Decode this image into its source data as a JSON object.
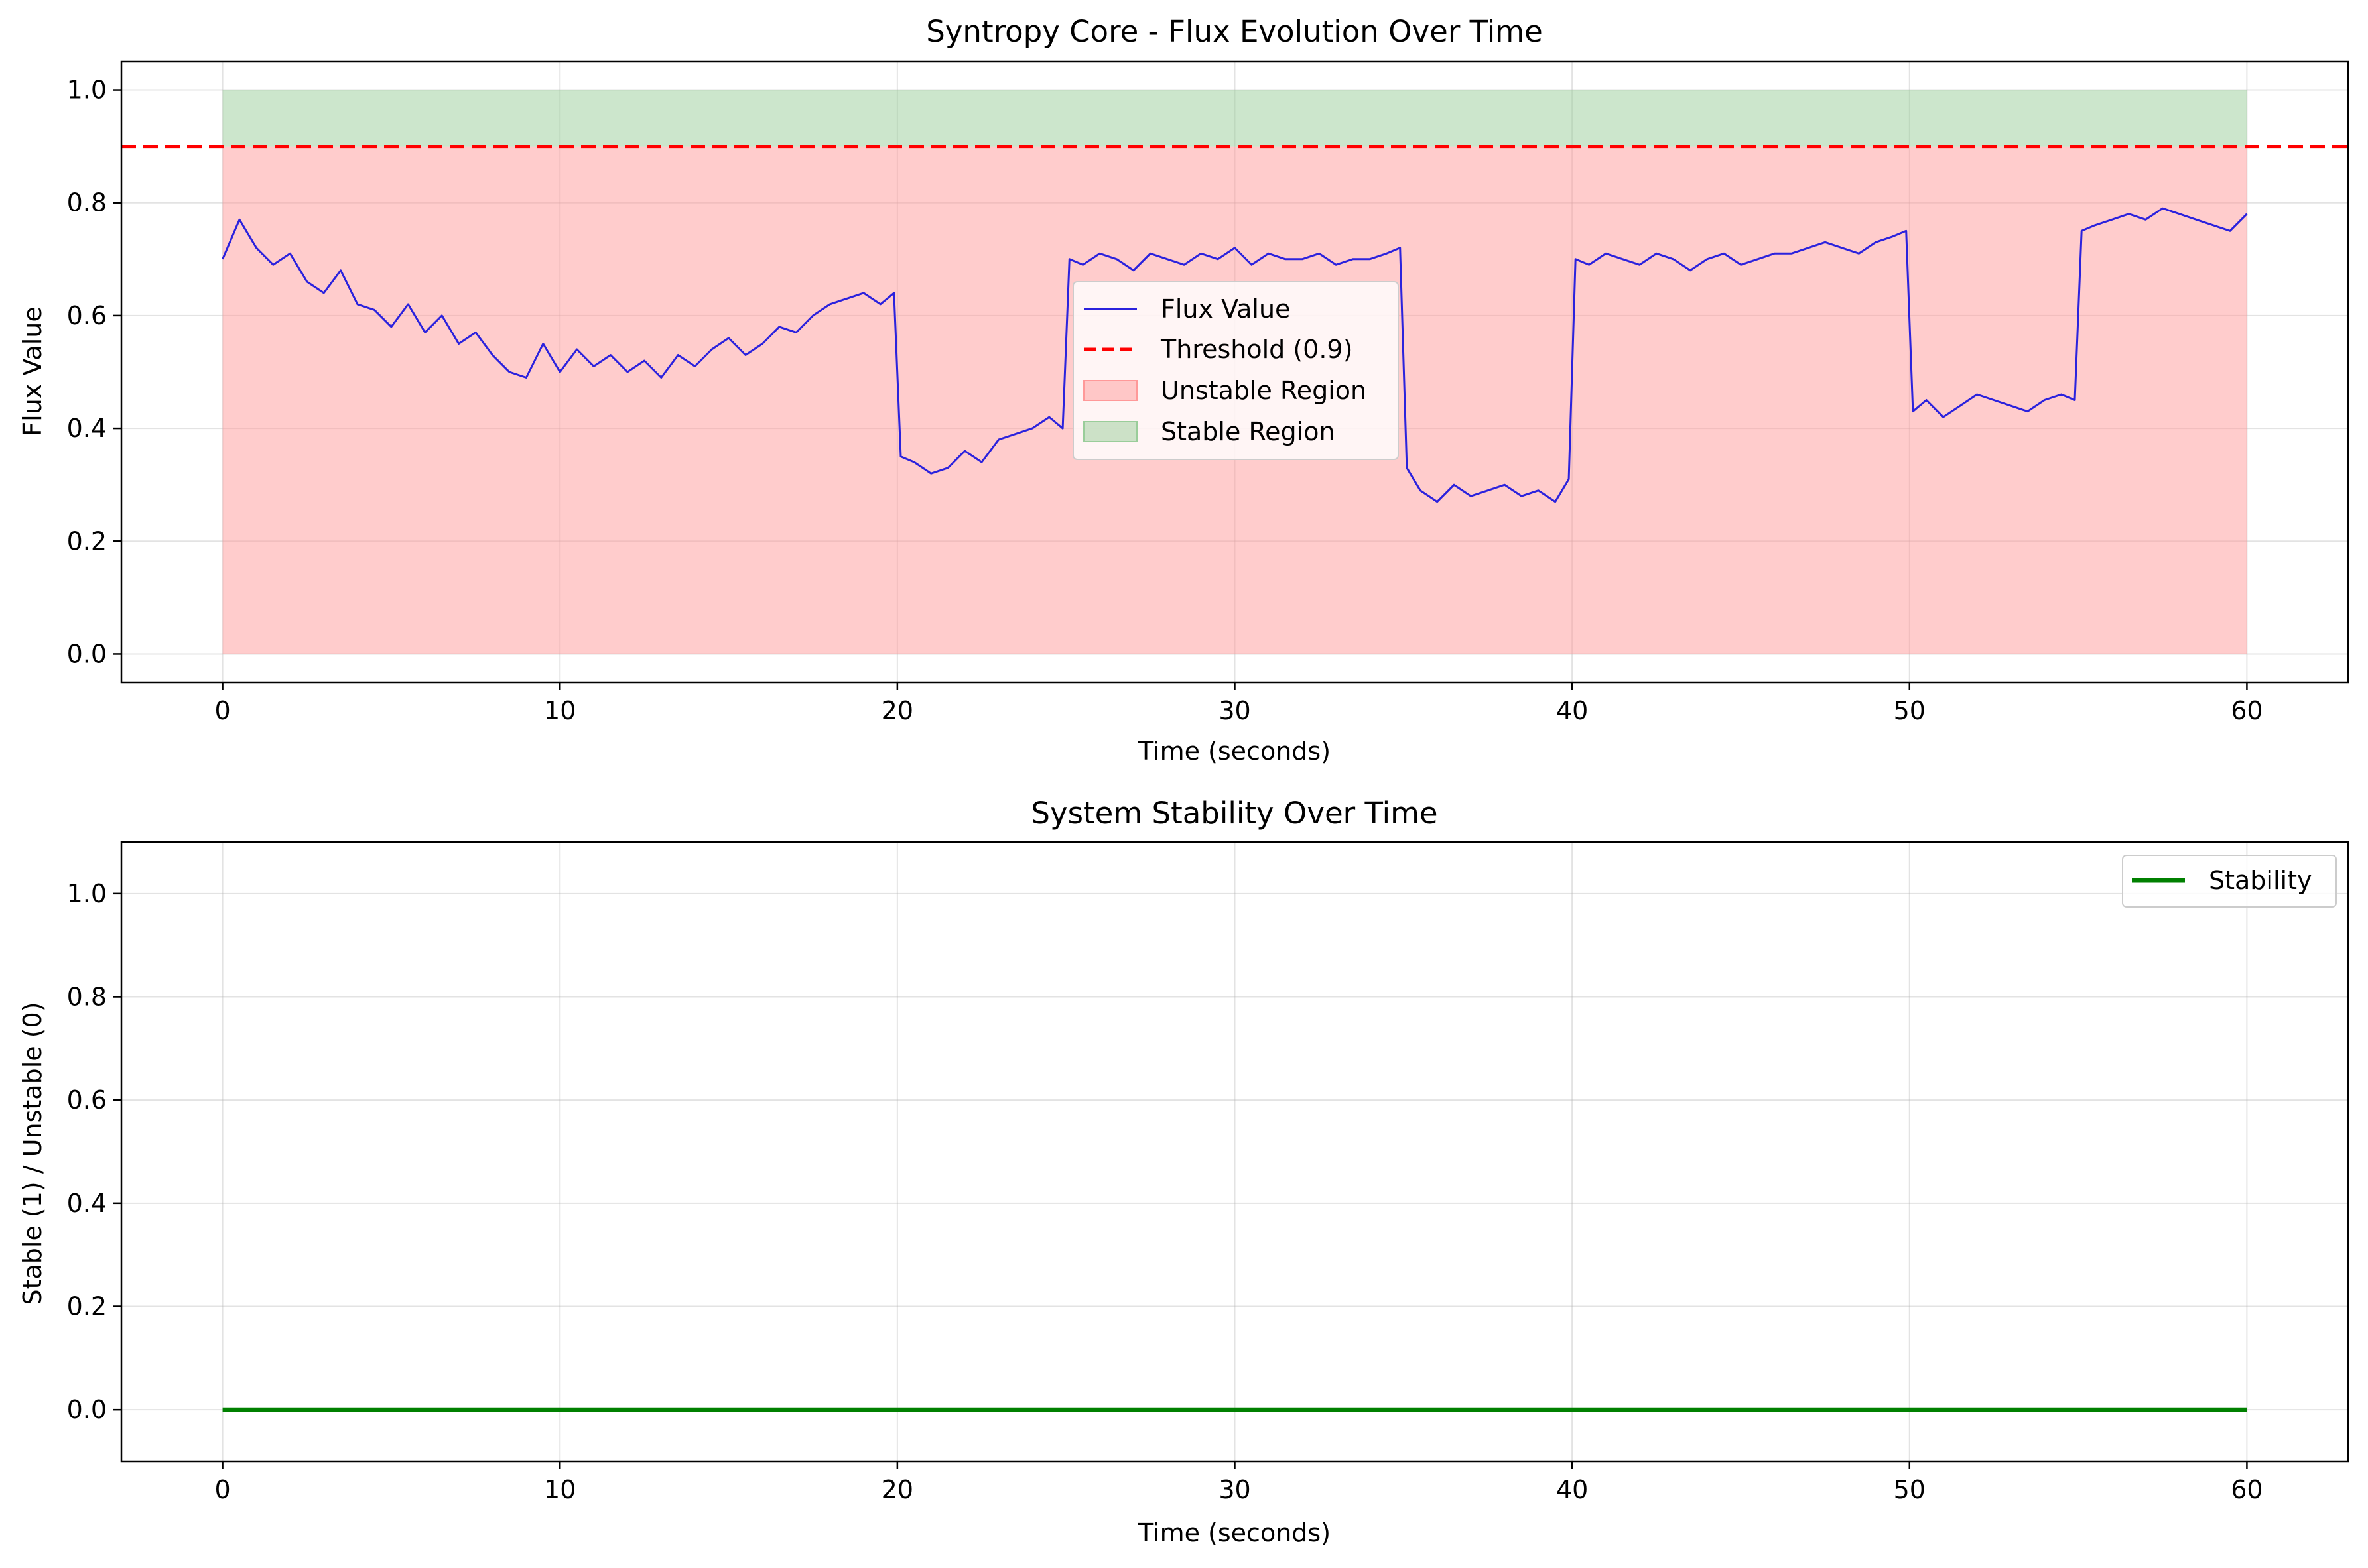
{
  "chart_data": [
    {
      "type": "line",
      "title": "Syntropy Core - Flux Evolution Over Time",
      "xlabel": "Time (seconds)",
      "ylabel": "Flux Value",
      "xlim": [
        -3,
        63
      ],
      "ylim": [
        -0.05,
        1.05
      ],
      "xticks": [
        "0",
        "10",
        "20",
        "30",
        "40",
        "50",
        "60"
      ],
      "yticks": [
        "0.0",
        "0.2",
        "0.4",
        "0.6",
        "0.8",
        "1.0"
      ],
      "grid": true,
      "legend_position": "center",
      "threshold": 0.9,
      "regions": [
        {
          "name": "Unstable Region",
          "x": [
            0,
            60
          ],
          "y": [
            0,
            0.9
          ],
          "color": "#ff9999"
        },
        {
          "name": "Stable Region",
          "x": [
            0,
            60
          ],
          "y": [
            0.9,
            1.0
          ],
          "color": "#9acd9a"
        }
      ],
      "series": [
        {
          "name": "Flux Value",
          "color": "#2b22dd",
          "x": [
            0,
            0.5,
            1,
            1.5,
            2,
            2.5,
            3,
            3.5,
            4,
            4.5,
            5,
            5.5,
            6,
            6.5,
            7,
            7.5,
            8,
            8.5,
            9,
            9.5,
            10,
            10.5,
            11,
            11.5,
            12,
            12.5,
            13,
            13.5,
            14,
            14.5,
            15,
            15.5,
            16,
            16.5,
            17,
            17.5,
            18,
            18.5,
            19,
            19.5,
            19.9,
            20.1,
            20.5,
            21,
            21.5,
            22,
            22.5,
            23,
            23.5,
            24,
            24.5,
            24.9,
            25.1,
            25.5,
            26,
            26.5,
            27,
            27.5,
            28,
            28.5,
            29,
            29.5,
            30,
            30.5,
            31,
            31.5,
            32,
            32.5,
            33,
            33.5,
            34,
            34.5,
            34.9,
            35.1,
            35.5,
            36,
            36.5,
            37,
            37.5,
            38,
            38.5,
            39,
            39.5,
            39.9,
            40.1,
            40.5,
            41,
            41.5,
            42,
            42.5,
            43,
            43.5,
            44,
            44.5,
            45,
            45.5,
            46,
            46.5,
            47,
            47.5,
            48,
            48.5,
            49,
            49.5,
            49.9,
            50.1,
            50.5,
            51,
            51.5,
            52,
            52.5,
            53,
            53.5,
            54,
            54.5,
            54.9,
            55.1,
            55.5,
            56,
            56.5,
            57,
            57.5,
            58,
            58.5,
            59,
            59.5,
            60
          ],
          "y": [
            0.7,
            0.77,
            0.72,
            0.69,
            0.71,
            0.66,
            0.64,
            0.68,
            0.62,
            0.61,
            0.58,
            0.62,
            0.57,
            0.6,
            0.55,
            0.57,
            0.53,
            0.5,
            0.49,
            0.55,
            0.5,
            0.54,
            0.51,
            0.53,
            0.5,
            0.52,
            0.49,
            0.53,
            0.51,
            0.54,
            0.56,
            0.53,
            0.55,
            0.58,
            0.57,
            0.6,
            0.62,
            0.63,
            0.64,
            0.62,
            0.64,
            0.35,
            0.34,
            0.32,
            0.33,
            0.36,
            0.34,
            0.38,
            0.39,
            0.4,
            0.42,
            0.4,
            0.7,
            0.69,
            0.71,
            0.7,
            0.68,
            0.71,
            0.7,
            0.69,
            0.71,
            0.7,
            0.72,
            0.69,
            0.71,
            0.7,
            0.7,
            0.71,
            0.69,
            0.7,
            0.7,
            0.71,
            0.72,
            0.33,
            0.29,
            0.27,
            0.3,
            0.28,
            0.29,
            0.3,
            0.28,
            0.29,
            0.27,
            0.31,
            0.7,
            0.69,
            0.71,
            0.7,
            0.69,
            0.71,
            0.7,
            0.68,
            0.7,
            0.71,
            0.69,
            0.7,
            0.71,
            0.71,
            0.72,
            0.73,
            0.72,
            0.71,
            0.73,
            0.74,
            0.75,
            0.43,
            0.45,
            0.42,
            0.44,
            0.46,
            0.45,
            0.44,
            0.43,
            0.45,
            0.46,
            0.45,
            0.75,
            0.76,
            0.77,
            0.78,
            0.77,
            0.79,
            0.78,
            0.77,
            0.76,
            0.75,
            0.78
          ]
        },
        {
          "name": "Threshold (0.9)",
          "color": "#ff0000",
          "dash": true,
          "y": 0.9
        }
      ]
    },
    {
      "type": "line",
      "title": "System Stability Over Time",
      "xlabel": "Time (seconds)",
      "ylabel": "Stable (1) / Unstable (0)",
      "xlim": [
        -3,
        63
      ],
      "ylim": [
        -0.1,
        1.1
      ],
      "xticks": [
        "0",
        "10",
        "20",
        "30",
        "40",
        "50",
        "60"
      ],
      "yticks": [
        "0.0",
        "0.2",
        "0.4",
        "0.6",
        "0.8",
        "1.0"
      ],
      "grid": true,
      "legend_position": "top-right",
      "series": [
        {
          "name": "Stability",
          "color": "#008000",
          "x": [
            0,
            60
          ],
          "y": [
            0,
            0
          ]
        }
      ]
    }
  ]
}
